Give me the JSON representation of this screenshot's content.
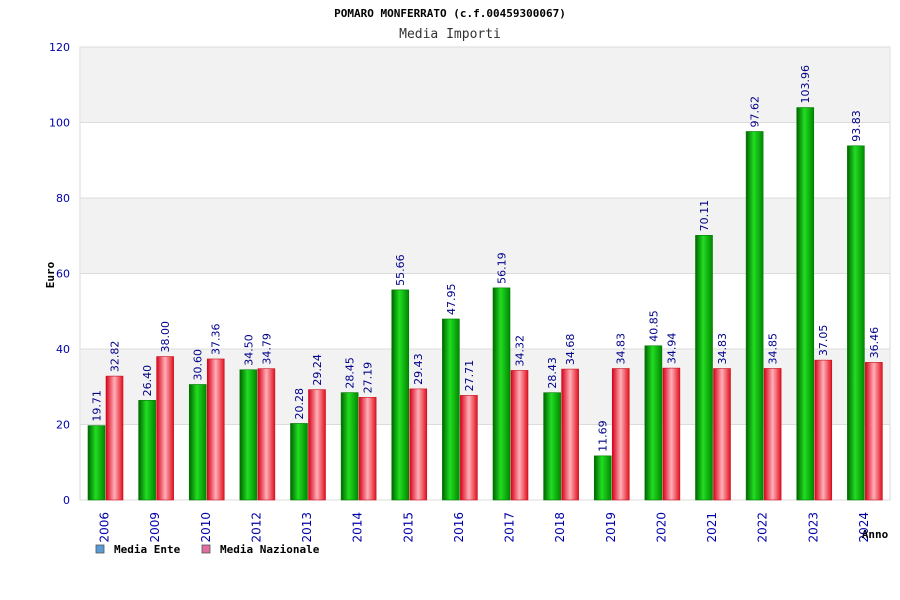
{
  "chart_data": {
    "type": "bar",
    "title": "POMARO MONFERRATO (c.f.00459300067)",
    "subtitle": "Media Importi",
    "ylabel": "Euro",
    "xlabel": "Anno",
    "ylim": [
      0,
      120
    ],
    "yticks": [
      0,
      20,
      40,
      60,
      80,
      100,
      120
    ],
    "grid": true,
    "legend_position": "bottom-left",
    "categories": [
      "2006",
      "2009",
      "2010",
      "2012",
      "2013",
      "2014",
      "2015",
      "2016",
      "2017",
      "2018",
      "2019",
      "2020",
      "2021",
      "2022",
      "2023",
      "2024"
    ],
    "series": [
      {
        "name": "Media Ente",
        "color": "#00b000",
        "legend_color": "#5b9bd5",
        "values": [
          19.71,
          26.4,
          30.6,
          34.5,
          20.28,
          28.45,
          55.66,
          47.95,
          56.19,
          28.43,
          11.69,
          40.85,
          70.11,
          97.62,
          103.96,
          93.83
        ],
        "labels": [
          "19.71",
          "26.40",
          "30.60",
          "34.50",
          "20.28",
          "28.45",
          "55.66",
          "47.95",
          "56.19",
          "28.43",
          "11.69",
          "40.85",
          "70.11",
          "97.62",
          "103.96",
          "93.83"
        ]
      },
      {
        "name": "Media Nazionale",
        "color": "#e8202a",
        "legend_color": "#e06fa0",
        "values": [
          32.82,
          38.0,
          37.36,
          34.79,
          29.24,
          27.19,
          29.43,
          27.71,
          34.32,
          34.68,
          34.83,
          34.94,
          34.83,
          34.85,
          37.05,
          36.46
        ],
        "labels": [
          "32.82",
          "38.00",
          "37.36",
          "34.79",
          "29.24",
          "27.19",
          "29.43",
          "27.71",
          "34.32",
          "34.68",
          "34.83",
          "34.94",
          "34.83",
          "34.85",
          "37.05",
          "36.46"
        ]
      }
    ]
  }
}
